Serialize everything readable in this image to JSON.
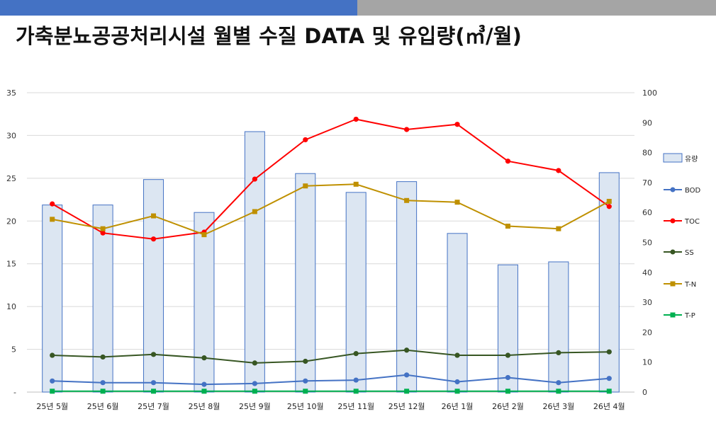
{
  "header": {
    "title": "가축분뇨공공처리시설 월별 수질 DATA 및 유입량(㎥/월)"
  },
  "chart_data": {
    "type": "bar+line",
    "title": "가축분뇨공공처리시설 월별 수질 DATA 및 유입량(㎥/월)",
    "categories": [
      "25년 5월",
      "25년 6월",
      "25년 7월",
      "25년 8월",
      "25년 9월",
      "25년 10월",
      "25년 11월",
      "25년 12월",
      "26년 1월",
      "26년 2월",
      "26년 3월",
      "26년 4월"
    ],
    "left_axis": {
      "ylim": [
        0,
        35
      ],
      "ticks": [
        "-",
        "5",
        "10",
        "15",
        "20",
        "25",
        "30",
        "35"
      ]
    },
    "right_axis": {
      "ylim": [
        0,
        100
      ],
      "ticks": [
        "0",
        "10",
        "20",
        "30",
        "40",
        "50",
        "60",
        "70",
        "80",
        "90",
        "100"
      ]
    },
    "bar_series": {
      "name": "유량",
      "axis": "right",
      "color": "#dce6f2",
      "border": "#4472c4",
      "values": [
        62.5,
        62.5,
        71,
        60,
        87,
        73,
        66.7,
        70.3,
        53,
        42.5,
        43.5,
        73.3
      ]
    },
    "series": [
      {
        "name": "BOD",
        "axis": "left",
        "color": "#4472c4",
        "marker": "circle",
        "values": [
          1.3,
          1.1,
          1.1,
          0.9,
          1.0,
          1.3,
          1.4,
          2.0,
          1.2,
          1.7,
          1.1,
          1.6
        ]
      },
      {
        "name": "TOC",
        "axis": "left",
        "color": "#ff0000",
        "marker": "circle",
        "values": [
          22.0,
          18.6,
          17.9,
          18.7,
          24.9,
          29.5,
          31.9,
          30.7,
          31.3,
          27.0,
          25.9,
          21.7
        ]
      },
      {
        "name": "SS",
        "axis": "left",
        "color": "#375623",
        "marker": "circle",
        "values": [
          4.3,
          4.1,
          4.4,
          4.0,
          3.4,
          3.6,
          4.5,
          4.9,
          4.3,
          4.3,
          4.6,
          4.7
        ]
      },
      {
        "name": "T-N",
        "axis": "left",
        "color": "#bf9000",
        "marker": "square",
        "values": [
          20.2,
          19.1,
          20.6,
          18.4,
          21.1,
          24.1,
          24.3,
          22.4,
          22.2,
          19.4,
          19.1,
          22.3
        ]
      },
      {
        "name": "T-P",
        "axis": "left",
        "color": "#00b050",
        "marker": "square",
        "values": [
          0.1,
          0.1,
          0.1,
          0.1,
          0.1,
          0.1,
          0.1,
          0.1,
          0.1,
          0.1,
          0.1,
          0.1
        ]
      }
    ],
    "legend_position": "right",
    "grid": true
  }
}
